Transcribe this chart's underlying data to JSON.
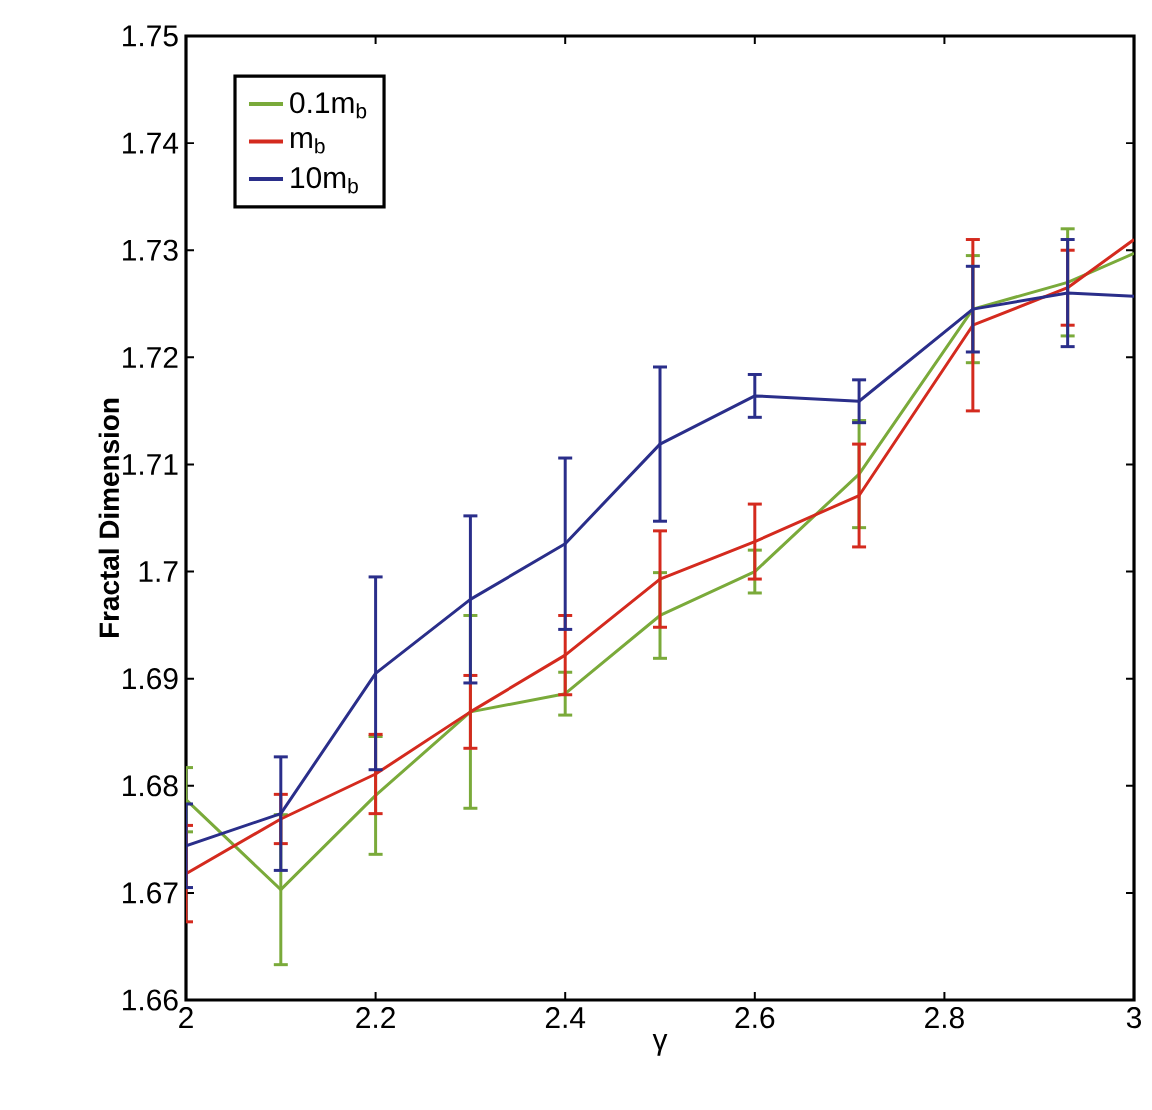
{
  "chart_data": {
    "type": "line",
    "xlabel": "γ",
    "ylabel": "Fractal Dimension",
    "x": [
      2,
      2.1,
      2.2,
      2.3,
      2.4,
      2.5,
      2.6,
      2.71,
      2.83,
      2.93,
      3
    ],
    "series": [
      {
        "name": "0.1m$_{b}$",
        "color": "#7aaa3a",
        "values": [
          1.6787,
          1.6703,
          1.6791,
          1.6869,
          1.6886,
          1.6959,
          1.7,
          1.7091,
          1.7245,
          1.727,
          1.7297
        ],
        "errors": [
          0.003,
          0.007,
          0.0055,
          0.009,
          0.002,
          0.004,
          0.002,
          0.005,
          0.005,
          0.005,
          null
        ]
      },
      {
        "name": "m$_{b}$",
        "color": "#d42a1e",
        "values": [
          1.6718,
          1.6769,
          1.6811,
          1.6869,
          1.6922,
          1.6993,
          1.7028,
          1.7071,
          1.723,
          1.7265,
          1.731
        ],
        "errors": [
          0.0045,
          0.0023,
          0.0037,
          0.0034,
          0.0037,
          0.0045,
          0.0035,
          0.0048,
          0.008,
          0.0035,
          null
        ]
      },
      {
        "name": "10m$_{b}$",
        "color": "#2a2e8a",
        "values": [
          1.6744,
          1.6774,
          1.6905,
          1.6974,
          1.7026,
          1.7119,
          1.7164,
          1.7159,
          1.7245,
          1.726,
          1.7257
        ],
        "errors": [
          0.0039,
          0.0053,
          0.009,
          0.0078,
          0.008,
          0.0072,
          0.002,
          0.002,
          0.004,
          0.005,
          null
        ]
      }
    ],
    "xlim": [
      2,
      3
    ],
    "ylim": [
      1.66,
      1.75
    ],
    "xticks": [
      2,
      2.2,
      2.4,
      2.6,
      2.8,
      3
    ],
    "yticks": [
      1.66,
      1.67,
      1.68,
      1.69,
      1.7,
      1.71,
      1.72,
      1.73,
      1.74,
      1.75
    ],
    "grid": false,
    "legend": "top left",
    "marker": "none",
    "line_style": "solid"
  }
}
